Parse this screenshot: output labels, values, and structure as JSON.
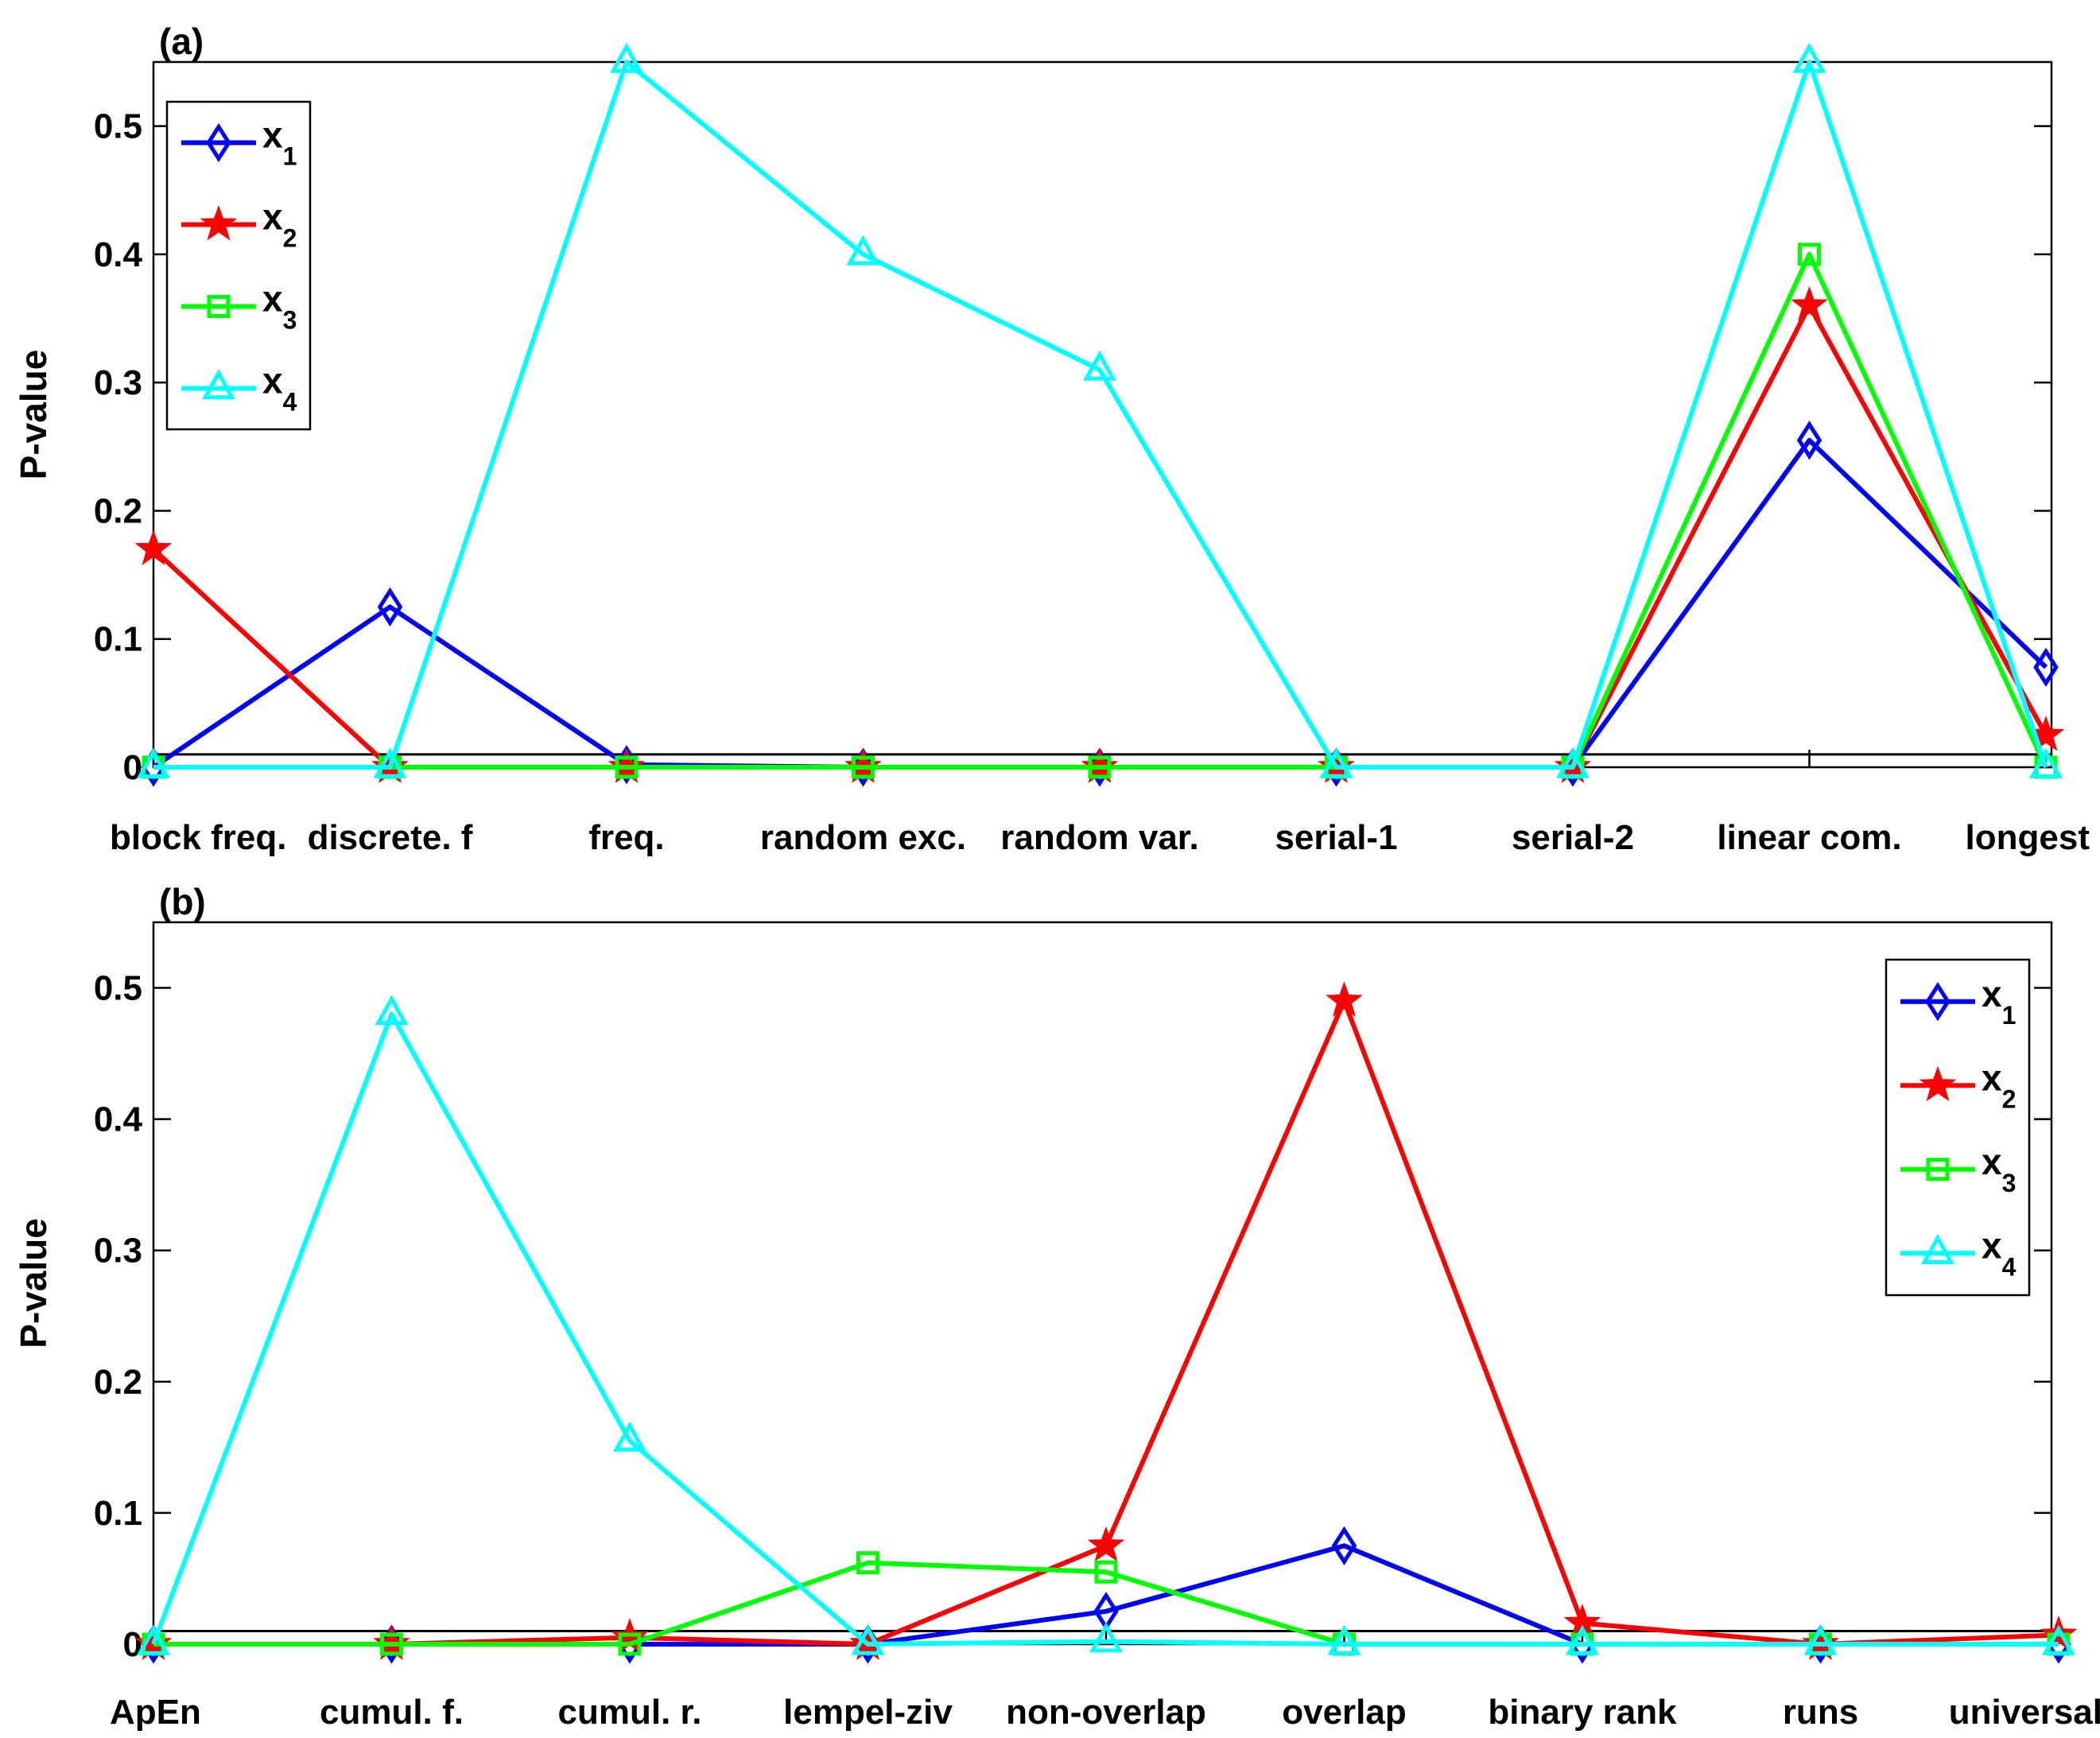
{
  "chart_data": [
    {
      "type": "line",
      "panel_label": "(a)",
      "ylabel": "P-value",
      "ylim": [
        0,
        0.55
      ],
      "yticks": [
        0,
        0.1,
        0.2,
        0.3,
        0.4,
        0.5
      ],
      "ytick_labels": [
        "0",
        "0.1",
        "0.2",
        "0.3",
        "0.4",
        "0.5"
      ],
      "threshold": 0.01,
      "categories": [
        "block freq.",
        "discrete. f",
        "freq.",
        "random exc.",
        "random var.",
        "serial-1",
        "serial-2",
        "linear com.",
        "longest"
      ],
      "legend_position": "top-left",
      "series": [
        {
          "name": "x",
          "sub": "1",
          "color": "#0000ff",
          "marker": "diamond",
          "values": [
            0.0,
            0.125,
            0.002,
            0.0,
            0.0,
            0.0,
            0.0,
            0.255,
            0.078
          ]
        },
        {
          "name": "x",
          "sub": "2",
          "color": "#ff0000",
          "marker": "star",
          "values": [
            0.17,
            0.0,
            0.0,
            0.0,
            0.0,
            0.0,
            0.0,
            0.36,
            0.025
          ]
        },
        {
          "name": "x",
          "sub": "3",
          "color": "#00ff00",
          "marker": "square",
          "values": [
            0.0,
            0.0,
            0.0,
            0.0,
            0.0,
            0.0,
            0.0,
            0.4,
            0.0
          ]
        },
        {
          "name": "x",
          "sub": "4",
          "color": "#00ffff",
          "marker": "triangle",
          "values": [
            0.0,
            0.0,
            0.55,
            0.4,
            0.31,
            0.0,
            0.0,
            0.55,
            0.0
          ]
        }
      ]
    },
    {
      "type": "line",
      "panel_label": "(b)",
      "ylabel": "P-value",
      "ylim": [
        0,
        0.55
      ],
      "yticks": [
        0,
        0.1,
        0.2,
        0.3,
        0.4,
        0.5
      ],
      "ytick_labels": [
        "0",
        "0.1",
        "0.2",
        "0.3",
        "0.4",
        "0.5"
      ],
      "threshold": 0.01,
      "categories": [
        "ApEn",
        "cumul. f.",
        "cumul. r.",
        "lempel-ziv",
        "non-overlap",
        "overlap",
        "binary rank",
        "runs",
        "universal"
      ],
      "legend_position": "top-right",
      "series": [
        {
          "name": "x",
          "sub": "1",
          "color": "#0000ff",
          "marker": "diamond",
          "values": [
            0.0,
            0.0,
            0.0,
            0.0,
            0.025,
            0.075,
            0.0,
            0.0,
            0.0
          ]
        },
        {
          "name": "x",
          "sub": "2",
          "color": "#ff0000",
          "marker": "star",
          "values": [
            0.0,
            0.0,
            0.005,
            0.0,
            0.075,
            0.49,
            0.016,
            0.0,
            0.007
          ]
        },
        {
          "name": "x",
          "sub": "3",
          "color": "#00ff00",
          "marker": "square",
          "values": [
            0.0,
            0.0,
            0.0,
            0.062,
            0.055,
            0.0,
            0.0,
            0.0,
            0.0
          ]
        },
        {
          "name": "x",
          "sub": "4",
          "color": "#00ffff",
          "marker": "triangle",
          "values": [
            0.0,
            0.48,
            0.155,
            0.0,
            0.002,
            0.0,
            0.0,
            0.0,
            0.0
          ]
        }
      ]
    }
  ]
}
